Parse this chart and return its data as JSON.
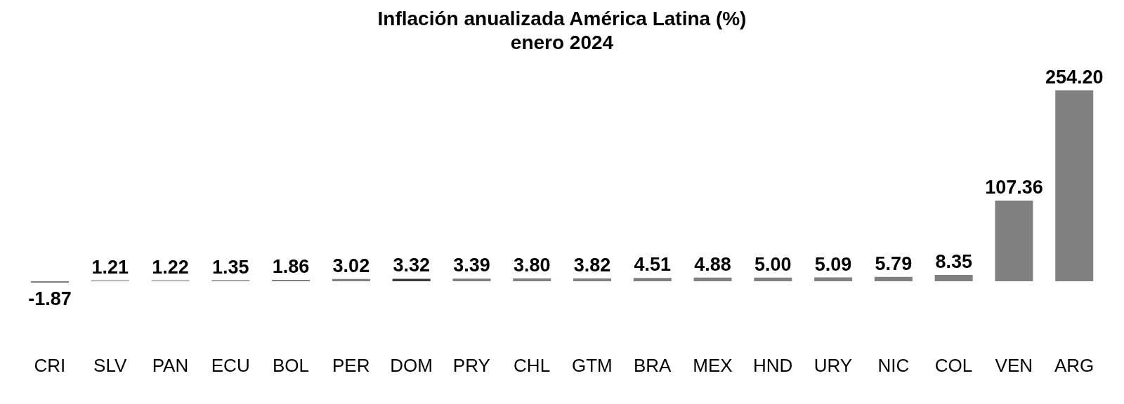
{
  "chart_data": {
    "type": "bar",
    "title": "Inflación anualizada América Latina (%)",
    "subtitle": "enero 2024",
    "categories": [
      "CRI",
      "SLV",
      "PAN",
      "ECU",
      "BOL",
      "PER",
      "DOM",
      "PRY",
      "CHL",
      "GTM",
      "BRA",
      "MEX",
      "HND",
      "URY",
      "NIC",
      "COL",
      "VEN",
      "ARG"
    ],
    "values": [
      -1.87,
      1.21,
      1.22,
      1.35,
      1.86,
      3.02,
      3.32,
      3.39,
      3.8,
      3.82,
      4.51,
      4.88,
      5.0,
      5.09,
      5.79,
      8.35,
      107.36,
      254.2
    ],
    "colors": [
      "#808080",
      "#808080",
      "#808080",
      "#808080",
      "#808080",
      "#808080",
      "#3a3a3a",
      "#808080",
      "#808080",
      "#808080",
      "#808080",
      "#808080",
      "#808080",
      "#808080",
      "#808080",
      "#808080",
      "#808080",
      "#808080"
    ],
    "value_labels": [
      "-1.87",
      "1.21",
      "1.22",
      "1.35",
      "1.86",
      "3.02",
      "3.32",
      "3.39",
      "3.80",
      "3.82",
      "4.51",
      "4.88",
      "5.00",
      "5.09",
      "5.79",
      "8.35",
      "107.36",
      "254.20"
    ],
    "grid": false,
    "legend": false
  }
}
